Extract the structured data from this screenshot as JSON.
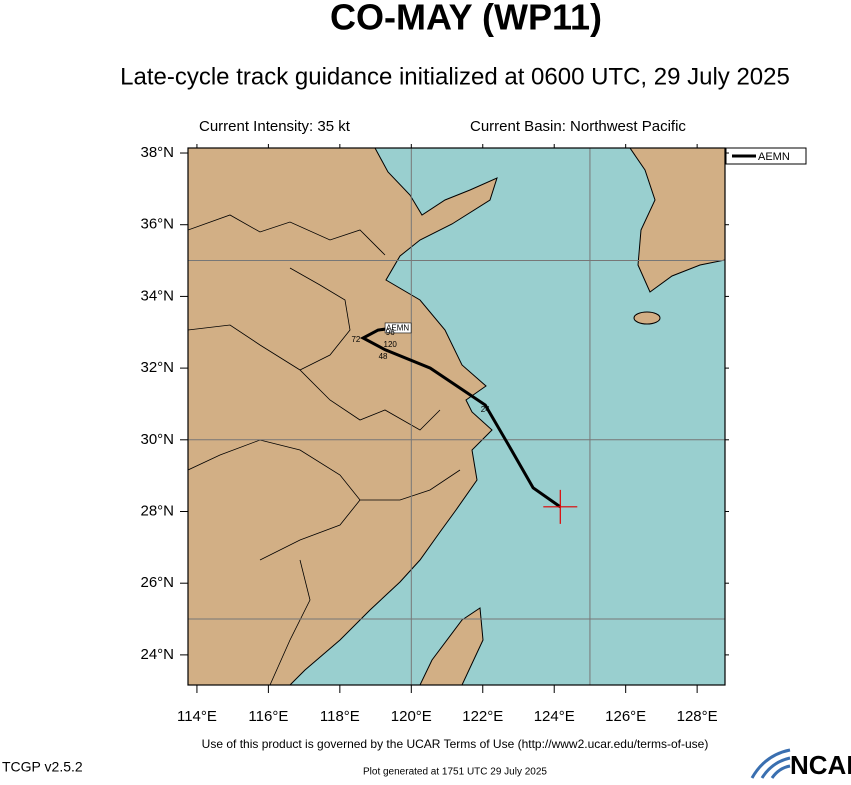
{
  "header": {
    "title": "CO-MAY (WP11)",
    "subtitle": "Late-cycle track guidance initialized at 0600 UTC, 29 July 2025",
    "intensity": "Current Intensity: 35 kt",
    "basin": "Current Basin: Northwest Pacific"
  },
  "map": {
    "xlim": [
      113.75,
      128.78
    ],
    "ylim": [
      23.16,
      38.14
    ],
    "xticks": [
      {
        "value": 114,
        "label": "114°E"
      },
      {
        "value": 116,
        "label": "116°E"
      },
      {
        "value": 118,
        "label": "118°E"
      },
      {
        "value": 120,
        "label": "120°E"
      },
      {
        "value": 122,
        "label": "122°E"
      },
      {
        "value": 124,
        "label": "124°E"
      },
      {
        "value": 126,
        "label": "126°E"
      },
      {
        "value": 128,
        "label": "128°E"
      }
    ],
    "yticks": [
      {
        "value": 24,
        "label": "24°N"
      },
      {
        "value": 26,
        "label": "26°N"
      },
      {
        "value": 28,
        "label": "28°N"
      },
      {
        "value": 30,
        "label": "30°N"
      },
      {
        "value": 32,
        "label": "32°N"
      },
      {
        "value": 34,
        "label": "34°N"
      },
      {
        "value": 36,
        "label": "36°N"
      },
      {
        "value": 38,
        "label": "38°N"
      }
    ],
    "lon_grid": [
      120,
      125
    ],
    "lat_grid": [
      25,
      30,
      35
    ],
    "track": {
      "name": "AEMN",
      "color": "#000000",
      "lon": [
        124.17,
        123.41,
        122.8,
        122.07,
        120.53,
        119.27,
        118.65,
        119.07,
        119.49
      ],
      "lat": [
        28.13,
        28.66,
        29.72,
        30.97,
        32.0,
        32.51,
        32.84,
        33.06,
        33.12
      ]
    },
    "hour_labels": [
      {
        "text": "24",
        "lon": 122.07,
        "lat": 30.83
      },
      {
        "text": "48",
        "lon": 119.21,
        "lat": 32.31
      },
      {
        "text": "72",
        "lon": 118.45,
        "lat": 32.79
      },
      {
        "text": "96",
        "lon": 119.41,
        "lat": 32.98
      },
      {
        "text": "120",
        "lon": 119.41,
        "lat": 32.65
      }
    ]
  },
  "footer": {
    "terms": "Use of this product is governed by the UCAR Terms of Use (http://www2.ucar.edu/terms-of-use)",
    "version": "TCGP v2.5.2",
    "generated": "Plot generated at 1751 UTC  29 July 2025",
    "logo": "NCAR"
  }
}
